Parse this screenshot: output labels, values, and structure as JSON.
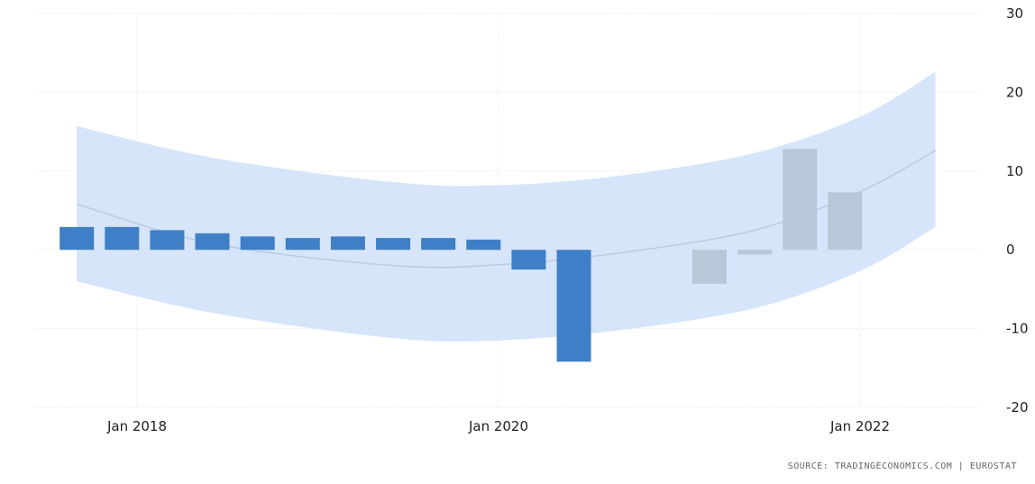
{
  "chart_data": {
    "type": "bar",
    "x_start": "2017-08",
    "x_ticks": [
      {
        "label": "Jan 2018",
        "date": "2018-01"
      },
      {
        "label": "Jan 2020",
        "date": "2020-01"
      },
      {
        "label": "Jan 2022",
        "date": "2022-01"
      }
    ],
    "y_ticks": [
      30,
      20,
      10,
      0,
      -10,
      -20
    ],
    "ylim": [
      -20,
      30
    ],
    "grid": true,
    "series": [
      {
        "style": "actual",
        "color": "#3f7fc7",
        "points": [
          {
            "date": "2017-09",
            "value": 2.9
          },
          {
            "date": "2017-12",
            "value": 2.9
          },
          {
            "date": "2018-03",
            "value": 2.5
          },
          {
            "date": "2018-06",
            "value": 2.1
          },
          {
            "date": "2018-09",
            "value": 1.7
          },
          {
            "date": "2018-12",
            "value": 1.5
          },
          {
            "date": "2019-03",
            "value": 1.7
          },
          {
            "date": "2019-06",
            "value": 1.5
          },
          {
            "date": "2019-09",
            "value": 1.5
          },
          {
            "date": "2019-12",
            "value": 1.3
          },
          {
            "date": "2020-03",
            "value": -2.5
          },
          {
            "date": "2020-06",
            "value": -14.2
          }
        ]
      },
      {
        "style": "forecast",
        "color": "#b8c8d8",
        "points": [
          {
            "date": "2021-03",
            "value": -4.3
          },
          {
            "date": "2021-06",
            "value": -0.6
          },
          {
            "date": "2021-09",
            "value": 12.8
          },
          {
            "date": "2021-12",
            "value": 7.3
          }
        ]
      }
    ],
    "trend": {
      "color": "#b9cce4",
      "points": [
        {
          "date": "2017-09",
          "value": 5.8
        },
        {
          "date": "2018-06",
          "value": 0.8
        },
        {
          "date": "2019-06",
          "value": -2.0
        },
        {
          "date": "2020-01",
          "value": -1.9
        },
        {
          "date": "2020-09",
          "value": -0.4
        },
        {
          "date": "2021-06",
          "value": 2.5
        },
        {
          "date": "2022-01",
          "value": 7.4
        },
        {
          "date": "2022-06",
          "value": 12.6
        }
      ]
    },
    "band": {
      "color": "#cfe1f8",
      "upper": [
        {
          "date": "2017-09",
          "value": 15.7
        },
        {
          "date": "2018-06",
          "value": 11.7
        },
        {
          "date": "2019-06",
          "value": 8.6
        },
        {
          "date": "2020-01",
          "value": 8.2
        },
        {
          "date": "2020-09",
          "value": 9.4
        },
        {
          "date": "2021-06",
          "value": 12.3
        },
        {
          "date": "2022-01",
          "value": 16.9
        },
        {
          "date": "2022-06",
          "value": 22.6
        }
      ],
      "lower": [
        {
          "date": "2017-09",
          "value": -4.0
        },
        {
          "date": "2018-06",
          "value": -8.0
        },
        {
          "date": "2019-06",
          "value": -11.2
        },
        {
          "date": "2020-01",
          "value": -11.5
        },
        {
          "date": "2020-09",
          "value": -10.2
        },
        {
          "date": "2021-06",
          "value": -7.4
        },
        {
          "date": "2022-01",
          "value": -2.7
        },
        {
          "date": "2022-06",
          "value": 2.9
        }
      ]
    }
  },
  "source": "SOURCE: TRADINGECONOMICS.COM | EUROSTAT"
}
